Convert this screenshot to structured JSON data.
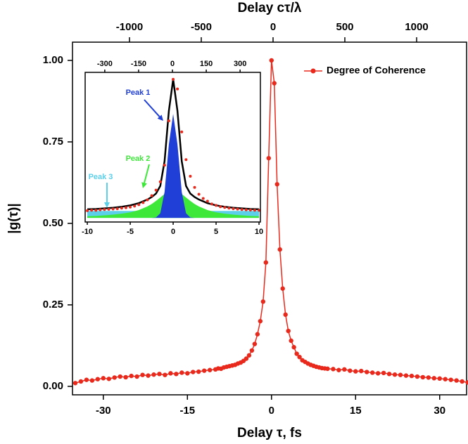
{
  "chart_data": [
    {
      "type": "line",
      "xlabel": "Delay τ, fs",
      "ylabel": "|g(τ)|",
      "x2label": "Delay cτ/λ",
      "xlim": [
        -35.5,
        34.8
      ],
      "xticks": [
        -30,
        -15,
        0,
        15,
        30
      ],
      "x2lim": [
        -1397,
        1348
      ],
      "x2ticks": [
        -1000,
        -500,
        0,
        500,
        1000
      ],
      "ylim": [
        -0.026,
        1.056
      ],
      "yticks": [
        {
          "value": 0,
          "label": "0.00"
        },
        {
          "value": 0.25,
          "label": "0.25"
        },
        {
          "value": 0.5,
          "label": "0.50"
        },
        {
          "value": 0.75,
          "label": "0.75"
        },
        {
          "value": 1,
          "label": "1.00"
        }
      ],
      "legend": "upper right",
      "x": [
        -35,
        -34,
        -33,
        -32,
        -31,
        -30,
        -29,
        -28,
        -27,
        -26,
        -25,
        -24,
        -23,
        -22,
        -21,
        -20,
        -19,
        -18,
        -17,
        -16,
        -15,
        -14,
        -13,
        -12,
        -11,
        -10,
        -9.5,
        -9,
        -8.5,
        -8,
        -7.5,
        -7,
        -6.5,
        -6,
        -5.5,
        -5,
        -4.5,
        -4,
        -3.5,
        -3,
        -2.5,
        -2,
        -1.5,
        -1,
        -0.5,
        0,
        0.5,
        1,
        1.5,
        2,
        2.5,
        3,
        3.5,
        4,
        4.5,
        5,
        5.5,
        6,
        6.5,
        7,
        7.5,
        8,
        8.5,
        9,
        9.5,
        10,
        11,
        12,
        13,
        14,
        15,
        16,
        17,
        18,
        19,
        20,
        21,
        22,
        23,
        24,
        25,
        26,
        27,
        28,
        29,
        30,
        31,
        32,
        33,
        34,
        35
      ],
      "series": [
        {
          "name": "Degree of Coherence",
          "color": "#e8291c",
          "values": [
            0.01,
            0.015,
            0.02,
            0.018,
            0.022,
            0.025,
            0.023,
            0.027,
            0.03,
            0.028,
            0.032,
            0.03,
            0.035,
            0.033,
            0.036,
            0.038,
            0.035,
            0.04,
            0.038,
            0.042,
            0.04,
            0.044,
            0.045,
            0.048,
            0.05,
            0.052,
            0.055,
            0.054,
            0.058,
            0.06,
            0.062,
            0.064,
            0.066,
            0.07,
            0.073,
            0.078,
            0.085,
            0.095,
            0.11,
            0.13,
            0.16,
            0.2,
            0.26,
            0.38,
            0.7,
            1.0,
            0.93,
            0.62,
            0.42,
            0.3,
            0.22,
            0.17,
            0.14,
            0.12,
            0.1,
            0.09,
            0.08,
            0.075,
            0.07,
            0.066,
            0.063,
            0.06,
            0.058,
            0.056,
            0.055,
            0.054,
            0.053,
            0.05,
            0.052,
            0.048,
            0.046,
            0.047,
            0.044,
            0.042,
            0.04,
            0.041,
            0.038,
            0.036,
            0.035,
            0.033,
            0.032,
            0.03,
            0.028,
            0.027,
            0.025,
            0.024,
            0.022,
            0.02,
            0.018,
            0.015,
            0.012
          ]
        }
      ]
    },
    {
      "type": "area",
      "xlim": [
        -10.25,
        10.16
      ],
      "xticks": [
        -10,
        -5,
        0,
        5,
        10
      ],
      "x2lim": [
        -387,
        390
      ],
      "x2ticks": [
        -300,
        -150,
        0,
        150,
        300
      ],
      "ylim": [
        -0.03,
        1.05
      ],
      "x": [
        -10,
        -9,
        -8,
        -7,
        -6,
        -5,
        -4,
        -3,
        -2.5,
        -2,
        -1.5,
        -1,
        -0.5,
        0,
        0.5,
        1,
        1.5,
        2,
        2.5,
        3,
        4,
        5,
        6,
        7,
        8,
        9,
        10
      ],
      "series": [
        {
          "name": "Peak 3",
          "color": "#5ccfea",
          "values": [
            0.05,
            0.05,
            0.05,
            0.05,
            0.05,
            0.05,
            0.05,
            0.05,
            0.05,
            0.05,
            0.05,
            0.05,
            0.05,
            0.05,
            0.05,
            0.05,
            0.05,
            0.05,
            0.05,
            0.05,
            0.05,
            0.05,
            0.05,
            0.05,
            0.05,
            0.05,
            0.05
          ]
        },
        {
          "name": "Peak 2",
          "color": "#3ee83a",
          "values": [
            0.012,
            0.014,
            0.018,
            0.023,
            0.03,
            0.04,
            0.056,
            0.082,
            0.1,
            0.122,
            0.147,
            0.172,
            0.192,
            0.2,
            0.192,
            0.172,
            0.147,
            0.122,
            0.1,
            0.082,
            0.056,
            0.04,
            0.03,
            0.023,
            0.018,
            0.014,
            0.012
          ]
        },
        {
          "name": "Peak 1",
          "color": "#1f3fd6",
          "values": [
            0,
            0,
            0,
            0,
            0,
            0,
            0,
            0,
            0,
            0.003,
            0.033,
            0.187,
            0.53,
            0.75,
            0.53,
            0.187,
            0.033,
            0.003,
            0,
            0,
            0,
            0,
            0,
            0,
            0,
            0,
            0
          ]
        },
        {
          "color": "#000000",
          "values": [
            0.062,
            0.064,
            0.068,
            0.073,
            0.08,
            0.09,
            0.106,
            0.132,
            0.15,
            0.175,
            0.23,
            0.409,
            0.772,
            1.0,
            0.772,
            0.409,
            0.23,
            0.175,
            0.15,
            0.132,
            0.106,
            0.09,
            0.08,
            0.073,
            0.068,
            0.064,
            0.062
          ]
        }
      ]
    }
  ]
}
